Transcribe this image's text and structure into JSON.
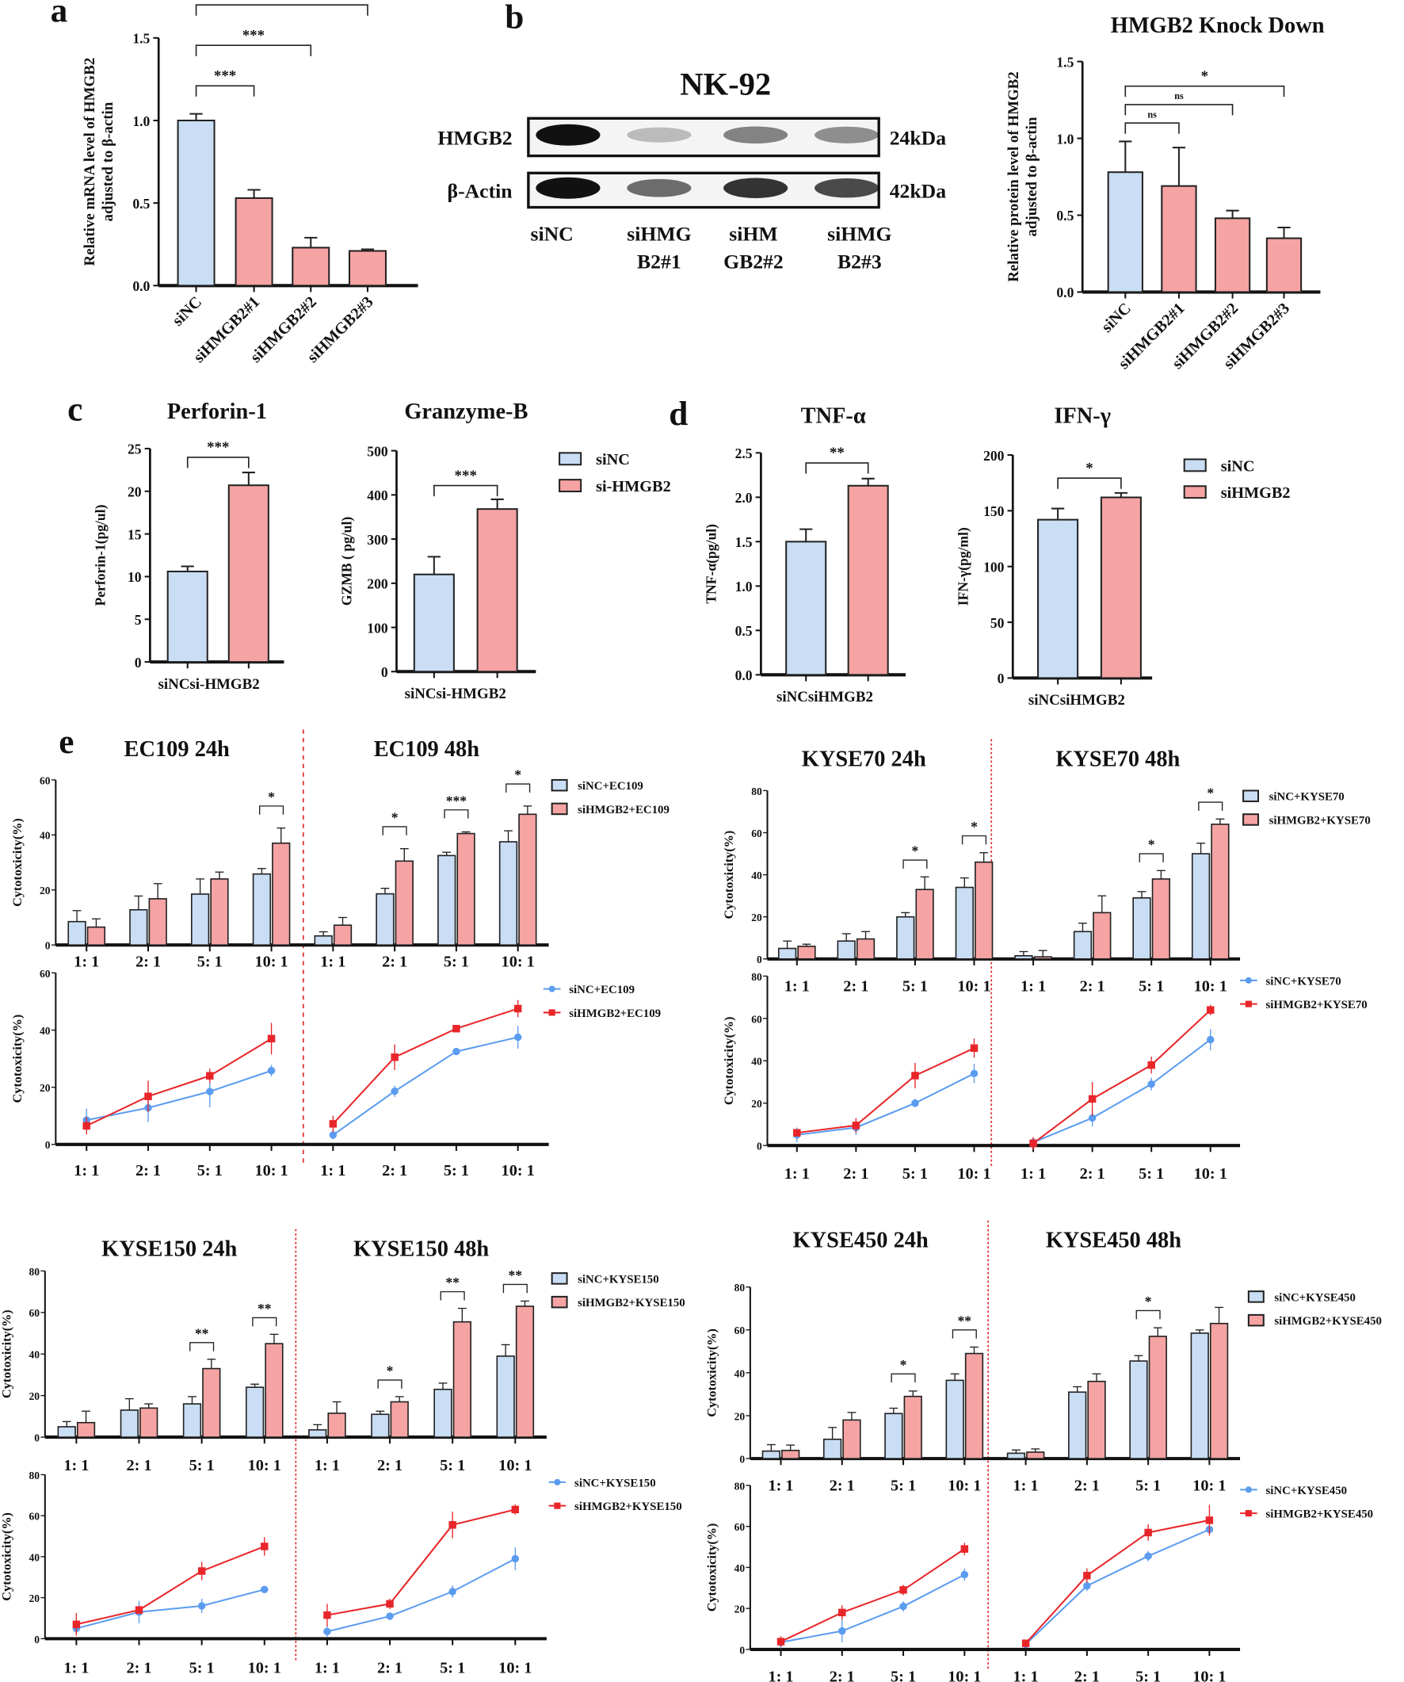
{
  "panel_labels": {
    "a": "a",
    "b": "b",
    "c": "c",
    "d": "d",
    "e": "e"
  },
  "colors": {
    "control_fill": "#c9ddf4",
    "knockdown_fill": "#f6a3a3",
    "control_line": "#5b9cf0",
    "knockdown_line": "#e8262a",
    "divider": "#e03030"
  },
  "western_blot": {
    "title": "NK-92",
    "rows": [
      {
        "protein": "HMGB2",
        "size": "24kDa",
        "intensity": [
          1.0,
          0.25,
          0.5,
          0.45
        ]
      },
      {
        "protein": "β-Actin",
        "size": "42kDa",
        "intensity": [
          1.0,
          0.6,
          0.85,
          0.75
        ]
      }
    ],
    "lanes": [
      [
        "siNC",
        ""
      ],
      [
        "siHMG",
        "B2#1"
      ],
      [
        "siHM",
        "GB2#2"
      ],
      [
        "siHMG",
        "B2#3"
      ]
    ]
  },
  "chart_data": [
    {
      "id": "a",
      "type": "bar",
      "title": "",
      "ylabel": [
        "Relative mRNA level of HMGB2",
        "adjusted to β-actin"
      ],
      "categories": [
        "siNC",
        "siHMGB2#1",
        "siHMGB2#2",
        "siHMGB2#3"
      ],
      "values": [
        1.0,
        0.53,
        0.23,
        0.21
      ],
      "errors": [
        0.04,
        0.05,
        0.06,
        0.01
      ],
      "ylim": [
        0,
        1.5
      ],
      "yticks": [
        "0.0",
        "0.5",
        "1.0",
        "1.5"
      ],
      "colors": [
        "control",
        "knockdown",
        "knockdown",
        "knockdown"
      ],
      "significance": [
        {
          "from": 0,
          "to": 1,
          "label": "***"
        },
        {
          "from": 0,
          "to": 2,
          "label": "***"
        },
        {
          "from": 0,
          "to": 3,
          "label": "***"
        }
      ]
    },
    {
      "id": "b",
      "type": "bar",
      "title": "HMGB2 Knock Down",
      "ylabel": [
        "Relative protein level of HMGB2",
        "adjusted to β-actin"
      ],
      "categories": [
        "siNC",
        "siHMGB2#1",
        "siHMGB2#2",
        "siHMGB2#3"
      ],
      "values": [
        0.78,
        0.69,
        0.48,
        0.35
      ],
      "errors": [
        0.2,
        0.25,
        0.05,
        0.07
      ],
      "ylim": [
        0,
        1.5
      ],
      "yticks": [
        "0.0",
        "0.5",
        "1.0",
        "1.5"
      ],
      "colors": [
        "control",
        "knockdown",
        "knockdown",
        "knockdown"
      ],
      "significance": [
        {
          "from": 0,
          "to": 1,
          "label": "ns"
        },
        {
          "from": 0,
          "to": 2,
          "label": "ns"
        },
        {
          "from": 0,
          "to": 3,
          "label": "*"
        }
      ]
    },
    {
      "id": "c1",
      "type": "bar",
      "title": "Perforin-1",
      "ylabel": [
        "Perforin-1(pg/ul)"
      ],
      "categories": [
        "siNC",
        "si-HMGB2"
      ],
      "values": [
        10.6,
        20.7
      ],
      "errors": [
        0.6,
        1.5
      ],
      "ylim": [
        0,
        25
      ],
      "yticks": [
        "0",
        "5",
        "10",
        "15",
        "20",
        "25"
      ],
      "colors": [
        "control",
        "knockdown"
      ],
      "significance": [
        {
          "from": 0,
          "to": 1,
          "label": "***"
        }
      ]
    },
    {
      "id": "c2",
      "type": "bar",
      "title": "Granzyme-B",
      "ylabel": [
        "GZMB ( pg/ul)"
      ],
      "categories": [
        "siNC",
        "si-HMGB2"
      ],
      "values": [
        220,
        368
      ],
      "errors": [
        40,
        22
      ],
      "ylim": [
        0,
        500
      ],
      "yticks": [
        "0",
        "100",
        "200",
        "300",
        "400",
        "500"
      ],
      "colors": [
        "control",
        "knockdown"
      ],
      "significance": [
        {
          "from": 0,
          "to": 1,
          "label": "***"
        }
      ]
    },
    {
      "id": "d1",
      "type": "bar",
      "title": "TNF-α",
      "ylabel": [
        "TNF-α(pg/ul)"
      ],
      "categories": [
        "siNC",
        "siHMGB2"
      ],
      "values": [
        1.5,
        2.13
      ],
      "errors": [
        0.14,
        0.08
      ],
      "ylim": [
        0,
        2.5
      ],
      "yticks": [
        "0.0",
        "0.5",
        "1.0",
        "1.5",
        "2.0",
        "2.5"
      ],
      "colors": [
        "control",
        "knockdown"
      ],
      "significance": [
        {
          "from": 0,
          "to": 1,
          "label": "**"
        }
      ]
    },
    {
      "id": "d2",
      "type": "bar",
      "title": "IFN-γ",
      "ylabel": [
        "IFN-γ(pg/ml)"
      ],
      "categories": [
        "siNC",
        "siHMGB2"
      ],
      "values": [
        142,
        162
      ],
      "errors": [
        10,
        4
      ],
      "ylim": [
        0,
        200
      ],
      "yticks": [
        "0",
        "50",
        "100",
        "150",
        "200"
      ],
      "colors": [
        "control",
        "knockdown"
      ],
      "significance": [
        {
          "from": 0,
          "to": 1,
          "label": "*"
        }
      ]
    }
  ],
  "legend_c": [
    "siNC",
    "si-HMGB2"
  ],
  "legend_d": [
    "siNC",
    "siHMGB2"
  ],
  "cytotoxicity": [
    {
      "cell": "EC109",
      "titles": [
        "EC109 24h",
        "EC109 48h"
      ],
      "ylabel": "Cytotoxicity(%)",
      "ylim": [
        0,
        60
      ],
      "yticks": [
        "0",
        "20",
        "40",
        "60"
      ],
      "ratios": [
        "1: 1",
        "2: 1",
        "5: 1",
        "10: 1"
      ],
      "legend": [
        "siNC+EC109",
        "siHMGB2+EC109"
      ],
      "h24": {
        "siNC": [
          8.5,
          12.8,
          18.5,
          25.8
        ],
        "siNC_err": [
          4,
          5,
          5.5,
          2
        ],
        "siHMGB2": [
          6.5,
          16.8,
          24,
          37
        ],
        "siHMGB2_err": [
          3,
          5.5,
          2.5,
          5.5
        ],
        "sig": [
          {
            "i": 3,
            "label": "*"
          }
        ]
      },
      "h48": {
        "siNC": [
          3.3,
          18.6,
          32.5,
          37.5
        ],
        "siNC_err": [
          1.5,
          2,
          1.2,
          4
        ],
        "siHMGB2": [
          7.2,
          30.5,
          40.5,
          47.5
        ],
        "siHMGB2_err": [
          2.8,
          4.5,
          0.6,
          3
        ],
        "sig": [
          {
            "i": 1,
            "label": "*"
          },
          {
            "i": 2,
            "label": "***"
          },
          {
            "i": 3,
            "label": "*"
          }
        ]
      }
    },
    {
      "cell": "KYSE70",
      "titles": [
        "KYSE70 24h",
        "KYSE70 48h"
      ],
      "ylabel": "Cytotoxicity(%)",
      "ylim": [
        0,
        80
      ],
      "yticks": [
        "0",
        "20",
        "40",
        "60",
        "80"
      ],
      "ratios": [
        "1: 1",
        "2: 1",
        "5: 1",
        "10: 1"
      ],
      "legend": [
        "siNC+KYSE70",
        "siHMGB2+KYSE70"
      ],
      "h24": {
        "siNC": [
          5,
          8.5,
          20,
          34
        ],
        "siNC_err": [
          3.5,
          3.5,
          2,
          4.5
        ],
        "siHMGB2": [
          6,
          9.5,
          33,
          46
        ],
        "siHMGB2_err": [
          1,
          3.5,
          6,
          4.5
        ],
        "sig": [
          {
            "i": 2,
            "label": "*"
          },
          {
            "i": 3,
            "label": "*"
          }
        ]
      },
      "h48": {
        "siNC": [
          1.5,
          13,
          29,
          50
        ],
        "siNC_err": [
          2,
          4,
          3,
          5
        ],
        "siHMGB2": [
          1,
          22,
          38,
          64
        ],
        "siHMGB2_err": [
          3,
          8,
          4,
          2.5
        ],
        "sig": [
          {
            "i": 2,
            "label": "*"
          },
          {
            "i": 3,
            "label": "*"
          }
        ]
      }
    },
    {
      "cell": "KYSE150",
      "titles": [
        "KYSE150 24h",
        "KYSE150 48h"
      ],
      "ylabel": "Cytotoxicity(%)",
      "ylim": [
        0,
        80
      ],
      "yticks": [
        "0",
        "20",
        "40",
        "60",
        "80"
      ],
      "ratios": [
        "1: 1",
        "2: 1",
        "5: 1",
        "10: 1"
      ],
      "legend": [
        "siNC+KYSE150",
        "siHMGB2+KYSE150"
      ],
      "h24": {
        "siNC": [
          5,
          13,
          16,
          24
        ],
        "siNC_err": [
          2.5,
          5.5,
          3.5,
          1.5
        ],
        "siHMGB2": [
          7,
          14,
          33,
          45
        ],
        "siHMGB2_err": [
          5.5,
          2,
          4.5,
          4.5
        ],
        "sig": [
          {
            "i": 2,
            "label": "**"
          },
          {
            "i": 3,
            "label": "**"
          }
        ]
      },
      "h48": {
        "siNC": [
          3.5,
          11,
          23,
          39
        ],
        "siNC_err": [
          2.5,
          1.5,
          3,
          5.5
        ],
        "siHMGB2": [
          11.5,
          17,
          55.5,
          63
        ],
        "siHMGB2_err": [
          5.5,
          2.5,
          6.5,
          2.5
        ],
        "sig": [
          {
            "i": 1,
            "label": "*"
          },
          {
            "i": 2,
            "label": "**"
          },
          {
            "i": 3,
            "label": "**"
          }
        ]
      }
    },
    {
      "cell": "KYSE450",
      "titles": [
        "KYSE450 24h",
        "KYSE450 48h"
      ],
      "ylabel": "Cytotoxicity(%)",
      "ylim": [
        0,
        80
      ],
      "yticks": [
        "0",
        "20",
        "40",
        "60",
        "80"
      ],
      "ratios": [
        "1: 1",
        "2: 1",
        "5: 1",
        "10: 1"
      ],
      "legend": [
        "siNC+KYSE450",
        "siHMGB2+KYSE450"
      ],
      "h24": {
        "siNC": [
          3.5,
          9,
          21,
          36.5
        ],
        "siNC_err": [
          3,
          5.5,
          2.5,
          3
        ],
        "siHMGB2": [
          3.8,
          18,
          29,
          49
        ],
        "siHMGB2_err": [
          2.5,
          3.5,
          2.5,
          3
        ],
        "sig": [
          {
            "i": 2,
            "label": "*"
          },
          {
            "i": 3,
            "label": "**"
          }
        ]
      },
      "h48": {
        "siNC": [
          2.5,
          31,
          45.5,
          58.5
        ],
        "siNC_err": [
          1.5,
          2.5,
          2.5,
          1.5
        ],
        "siHMGB2": [
          3,
          36,
          57,
          63
        ],
        "siHMGB2_err": [
          1.5,
          3.5,
          4,
          7.5
        ],
        "sig": [
          {
            "i": 2,
            "label": "*"
          }
        ]
      }
    }
  ]
}
